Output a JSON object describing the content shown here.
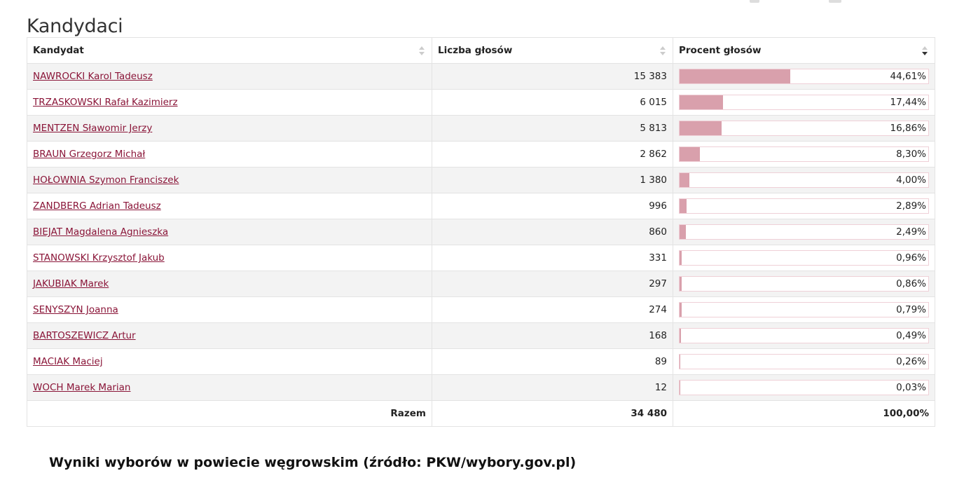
{
  "page": {
    "title": "Kandydaci"
  },
  "table": {
    "headers": {
      "candidate": "Kandydat",
      "votes": "Liczba głosów",
      "percent": "Procent głosów"
    },
    "sort": {
      "column": "percent",
      "direction": "desc"
    },
    "rows": [
      {
        "name": "NAWROCKI Karol Tadeusz",
        "votes": "15 383",
        "percent": "44,61%",
        "fraction": 0.4461
      },
      {
        "name": "TRZASKOWSKI Rafał Kazimierz",
        "votes": "6 015",
        "percent": "17,44%",
        "fraction": 0.1744
      },
      {
        "name": "MENTZEN Sławomir Jerzy",
        "votes": "5 813",
        "percent": "16,86%",
        "fraction": 0.1686
      },
      {
        "name": "BRAUN Grzegorz Michał",
        "votes": "2 862",
        "percent": "8,30%",
        "fraction": 0.083
      },
      {
        "name": "HOŁOWNIA Szymon Franciszek",
        "votes": "1 380",
        "percent": "4,00%",
        "fraction": 0.04
      },
      {
        "name": "ZANDBERG Adrian Tadeusz",
        "votes": "996",
        "percent": "2,89%",
        "fraction": 0.0289
      },
      {
        "name": "BIEJAT Magdalena Agnieszka",
        "votes": "860",
        "percent": "2,49%",
        "fraction": 0.0249
      },
      {
        "name": "STANOWSKI Krzysztof Jakub",
        "votes": "331",
        "percent": "0,96%",
        "fraction": 0.0096
      },
      {
        "name": "JAKUBIAK Marek",
        "votes": "297",
        "percent": "0,86%",
        "fraction": 0.0086
      },
      {
        "name": "SENYSZYN Joanna",
        "votes": "274",
        "percent": "0,79%",
        "fraction": 0.0079
      },
      {
        "name": "BARTOSZEWICZ Artur",
        "votes": "168",
        "percent": "0,49%",
        "fraction": 0.0049
      },
      {
        "name": "MACIAK Maciej",
        "votes": "89",
        "percent": "0,26%",
        "fraction": 0.0026
      },
      {
        "name": "WOCH Marek Marian",
        "votes": "12",
        "percent": "0,03%",
        "fraction": 0.0003
      }
    ],
    "total": {
      "label": "Razem",
      "votes": "34 480",
      "percent": "100,00%"
    }
  },
  "colors": {
    "link": "#8a1538",
    "bar_fill": "#d9a0ac",
    "bar_border": "#efd0d7",
    "row_stripe": "#f3f3f3"
  },
  "caption": "Wyniki wyborów w powiecie węgrowskim (źródło: PKW/wybory.gov.pl)"
}
